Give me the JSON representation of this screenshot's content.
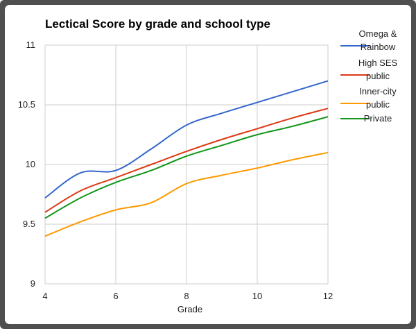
{
  "chart_data": {
    "type": "line",
    "title": "Lectical Score by grade and school type",
    "xlabel": "Grade",
    "ylabel": "",
    "xlim": [
      4,
      12
    ],
    "ylim": [
      9,
      11
    ],
    "x_ticks": [
      "4",
      "6",
      "8",
      "10",
      "12"
    ],
    "y_ticks": [
      "9",
      "9.5",
      "10",
      "10.5",
      "11"
    ],
    "grid": true,
    "legend_position": "right",
    "x": [
      4,
      5,
      6,
      7,
      8,
      9,
      10,
      11,
      12
    ],
    "series": [
      {
        "name": "Omega & Rainbow",
        "legend_lines": [
          "Omega &",
          "Rainbow"
        ],
        "color": "#3366cc",
        "values": [
          9.72,
          9.93,
          9.95,
          10.13,
          10.33,
          10.43,
          10.52,
          10.61,
          10.7
        ]
      },
      {
        "name": "High SES public",
        "legend_lines": [
          "High SES",
          "public"
        ],
        "color": "#dc3912",
        "values": [
          9.6,
          9.78,
          9.89,
          10.0,
          10.11,
          10.21,
          10.3,
          10.39,
          10.47
        ]
      },
      {
        "name": "Inner-city public",
        "legend_lines": [
          "Inner-city",
          "public"
        ],
        "color": "#ff9900",
        "values": [
          9.4,
          9.52,
          9.62,
          9.68,
          9.84,
          9.91,
          9.97,
          10.04,
          10.1
        ]
      },
      {
        "name": "Private",
        "legend_lines": [
          "Private"
        ],
        "color": "#109618",
        "values": [
          9.55,
          9.72,
          9.85,
          9.95,
          10.07,
          10.16,
          10.25,
          10.32,
          10.4
        ]
      }
    ]
  }
}
